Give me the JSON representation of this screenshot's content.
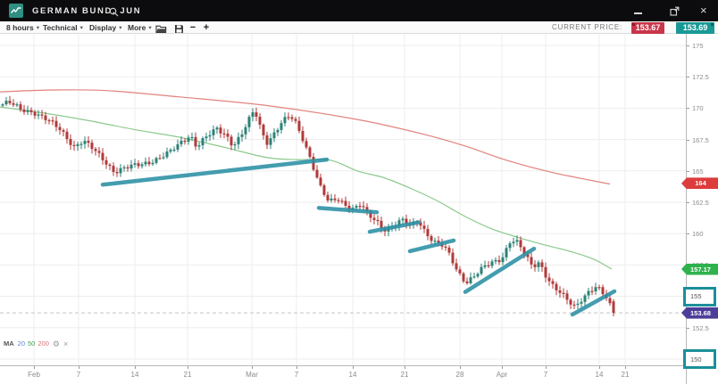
{
  "window": {
    "title": "GERMAN BUND, JUN",
    "control_icons": [
      "minimize-icon",
      "popout-icon",
      "close-icon"
    ],
    "close_glyph": "×"
  },
  "toolbar": {
    "dropdowns": [
      {
        "label": "8 hours"
      },
      {
        "label": "Technical"
      },
      {
        "label": "Display"
      },
      {
        "label": "More"
      }
    ],
    "icons": [
      "open-folder-icon",
      "save-icon",
      "zoom-out-icon",
      "zoom-in-icon"
    ],
    "zoom_out_glyph": "−",
    "zoom_in_glyph": "+",
    "current_price_label": "CURRENT PRICE:",
    "bid": "153.67",
    "ask": "153.69",
    "bid_color": "#c9364a",
    "ask_color": "#189997"
  },
  "chart_data": {
    "type": "candlestick",
    "symbol": "GERMAN BUND, JUN",
    "interval": "8 hours",
    "y_axis": {
      "ticks": [
        175,
        172.5,
        170,
        167.5,
        165,
        162.5,
        160,
        157.5,
        155,
        152.5,
        150
      ],
      "tick_labels": [
        "175",
        "172.5",
        "170",
        "167.5",
        "165",
        "162.5",
        "160",
        "157.5",
        "155",
        "152.5",
        "150"
      ],
      "boxed_levels": [
        155,
        150
      ],
      "box_color": "#1b8f99"
    },
    "x_axis": {
      "labels": [
        "Feb",
        "7",
        "14",
        "21",
        "Mar",
        "7",
        "14",
        "21",
        "28",
        "Apr",
        "7",
        "14",
        "21"
      ],
      "positions": [
        38,
        88,
        151,
        210,
        282,
        332,
        395,
        453,
        515,
        562,
        611,
        671,
        700
      ]
    },
    "last_price": 153.68,
    "price_path_anchors": [
      [
        0,
        170.2
      ],
      [
        12,
        170.45
      ],
      [
        25,
        169.9
      ],
      [
        40,
        169.7
      ],
      [
        55,
        169.05
      ],
      [
        70,
        168.25
      ],
      [
        85,
        166.95
      ],
      [
        95,
        167.4
      ],
      [
        105,
        166.8
      ],
      [
        118,
        165.9
      ],
      [
        130,
        164.95
      ],
      [
        142,
        165.2
      ],
      [
        155,
        165.45
      ],
      [
        168,
        165.7
      ],
      [
        180,
        166.0
      ],
      [
        192,
        166.45
      ],
      [
        205,
        167.3
      ],
      [
        215,
        167.9
      ],
      [
        222,
        166.95
      ],
      [
        232,
        167.6
      ],
      [
        245,
        168.35
      ],
      [
        255,
        167.9
      ],
      [
        263,
        167.05
      ],
      [
        272,
        167.8
      ],
      [
        282,
        169.2
      ],
      [
        287,
        169.85
      ],
      [
        293,
        168.6
      ],
      [
        300,
        167.25
      ],
      [
        308,
        167.9
      ],
      [
        318,
        168.9
      ],
      [
        327,
        169.35
      ],
      [
        333,
        168.8
      ],
      [
        341,
        167.6
      ],
      [
        350,
        165.95
      ],
      [
        360,
        163.8
      ],
      [
        370,
        162.45
      ],
      [
        380,
        162.8
      ],
      [
        390,
        162.25
      ],
      [
        398,
        162.0
      ],
      [
        406,
        162.35
      ],
      [
        414,
        161.45
      ],
      [
        424,
        160.95
      ],
      [
        432,
        160.35
      ],
      [
        442,
        160.65
      ],
      [
        452,
        161.05
      ],
      [
        462,
        160.6
      ],
      [
        470,
        161.1
      ],
      [
        478,
        160.2
      ],
      [
        488,
        159.35
      ],
      [
        498,
        159.0
      ],
      [
        506,
        158.2
      ],
      [
        514,
        157.0
      ],
      [
        524,
        156.15
      ],
      [
        534,
        156.7
      ],
      [
        544,
        157.3
      ],
      [
        554,
        157.7
      ],
      [
        564,
        158.05
      ],
      [
        574,
        159.55
      ],
      [
        582,
        159.25
      ],
      [
        590,
        158.25
      ],
      [
        598,
        157.35
      ],
      [
        606,
        157.75
      ],
      [
        614,
        156.6
      ],
      [
        622,
        155.75
      ],
      [
        630,
        155.2
      ],
      [
        638,
        154.6
      ],
      [
        646,
        154.15
      ],
      [
        654,
        154.9
      ],
      [
        662,
        155.45
      ],
      [
        670,
        155.75
      ],
      [
        676,
        155.25
      ],
      [
        681,
        154.85
      ],
      [
        686,
        154.1
      ],
      [
        690,
        153.7
      ]
    ],
    "ma50_green": [
      [
        0,
        170.1
      ],
      [
        50,
        169.6
      ],
      [
        100,
        169.0
      ],
      [
        150,
        168.3
      ],
      [
        200,
        167.7
      ],
      [
        250,
        166.9
      ],
      [
        300,
        166.05
      ],
      [
        335,
        165.9
      ],
      [
        370,
        165.85
      ],
      [
        400,
        165.0
      ],
      [
        430,
        164.45
      ],
      [
        460,
        163.6
      ],
      [
        490,
        162.6
      ],
      [
        520,
        161.4
      ],
      [
        550,
        160.4
      ],
      [
        580,
        159.7
      ],
      [
        610,
        159.1
      ],
      [
        640,
        158.55
      ],
      [
        665,
        157.95
      ],
      [
        685,
        157.17
      ]
    ],
    "ma200_red": [
      [
        0,
        171.3
      ],
      [
        60,
        171.45
      ],
      [
        120,
        171.4
      ],
      [
        200,
        170.9
      ],
      [
        300,
        170.2
      ],
      [
        400,
        169.1
      ],
      [
        470,
        168.0
      ],
      [
        520,
        167.0
      ],
      [
        567,
        165.85
      ],
      [
        620,
        164.85
      ],
      [
        683,
        163.95
      ]
    ],
    "trend_lines": [
      [
        115,
        163.9,
        366,
        165.9
      ],
      [
        357,
        162.05,
        422,
        161.7
      ],
      [
        414,
        160.15,
        469,
        160.9
      ],
      [
        459,
        158.6,
        508,
        159.45
      ],
      [
        521,
        155.35,
        598,
        158.8
      ],
      [
        641,
        153.55,
        688,
        155.4
      ]
    ],
    "tags": [
      {
        "text": "164",
        "price": 164,
        "color": "#dd3c3c"
      },
      {
        "text": "157.17",
        "price": 157.17,
        "color": "#2eb24e"
      },
      {
        "text": "153.68",
        "price": 153.68,
        "color": "#4c3d99"
      }
    ],
    "colors": {
      "up": "#2c8277",
      "down": "#b03a3a",
      "ma_green": "#8cc98c",
      "ma_red": "#e0837d",
      "trend": "#2b90a5",
      "dashed": "#c4c4c4",
      "grid": "#ededed"
    },
    "legend": {
      "label": "MA",
      "periods": [
        {
          "text": "20",
          "color": "#5b7fd6"
        },
        {
          "text": "50",
          "color": "#3fa34d"
        },
        {
          "text": "200",
          "color": "#d9707c"
        }
      ]
    }
  }
}
